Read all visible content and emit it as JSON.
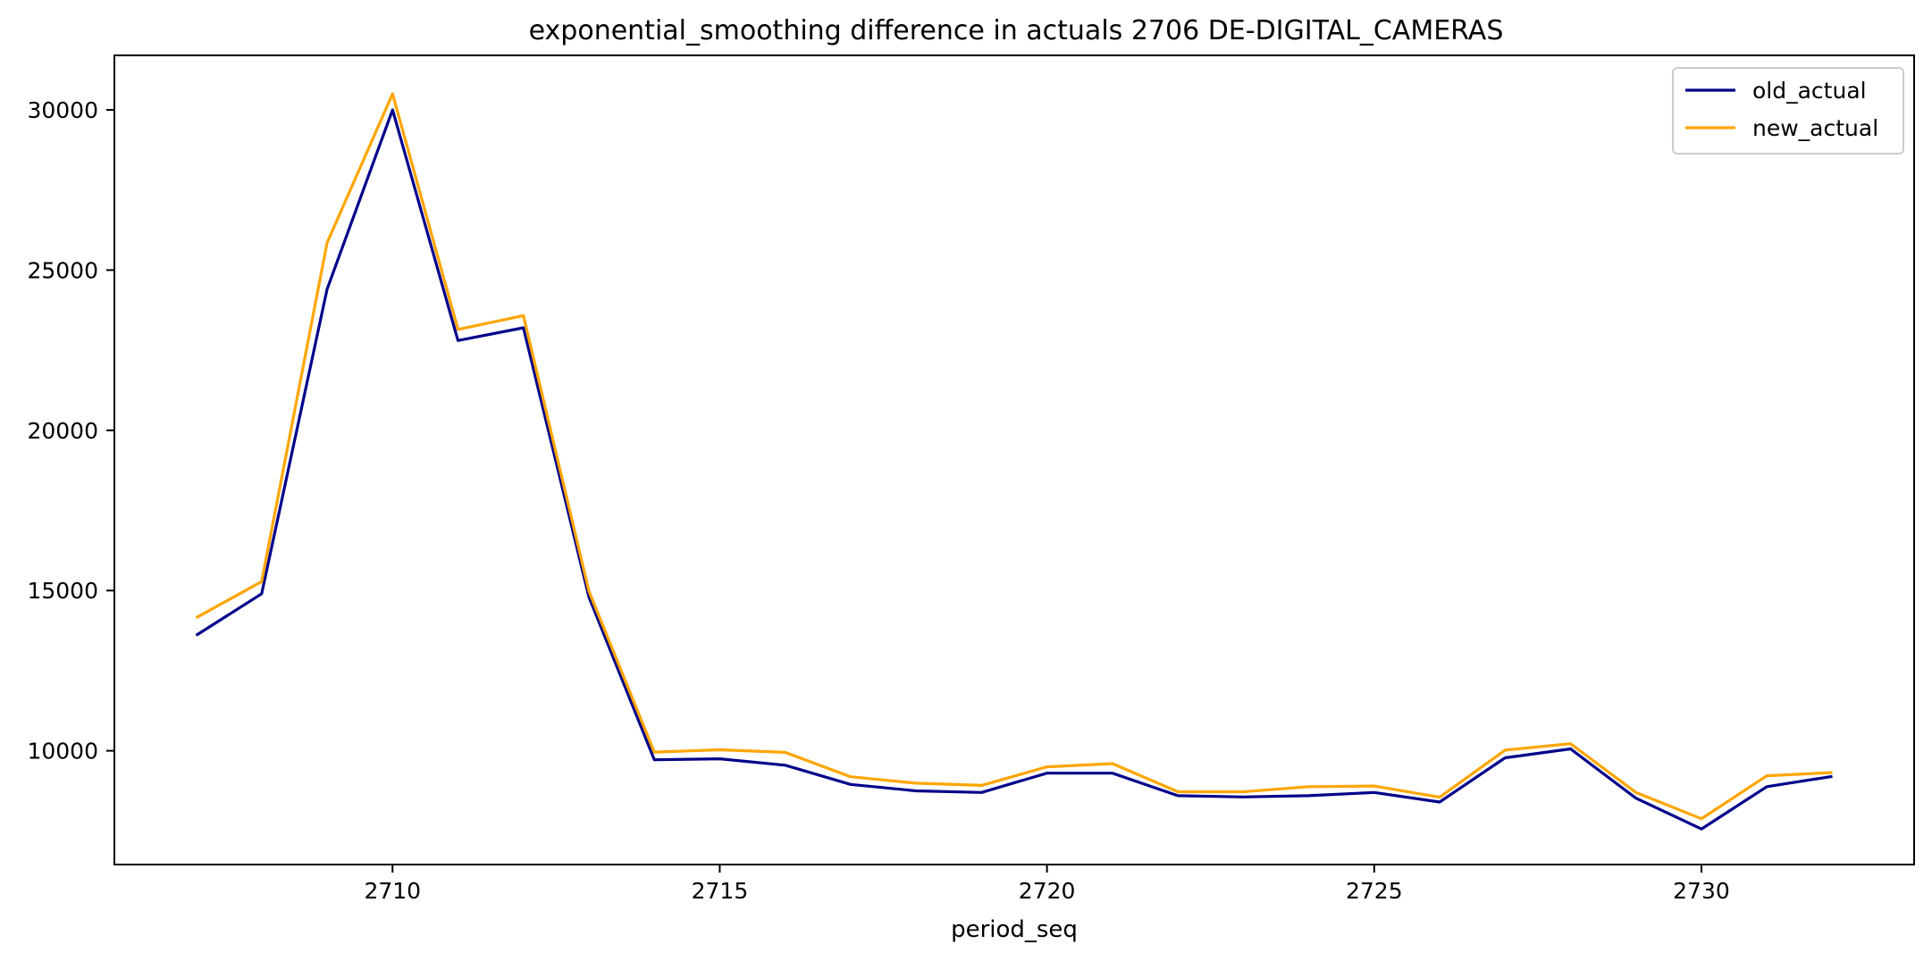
{
  "chart_data": {
    "type": "line",
    "title": "exponential_smoothing difference in actuals 2706 DE-DIGITAL_CAMERAS",
    "xlabel": "period_seq",
    "ylabel": "",
    "xlim": [
      2705.75,
      2733.25
    ],
    "ylim": [
      6450,
      31700
    ],
    "x_ticks": [
      2710,
      2715,
      2720,
      2725,
      2730
    ],
    "y_ticks": [
      10000,
      15000,
      20000,
      25000,
      30000
    ],
    "grid": false,
    "legend": {
      "placement": "top-right",
      "entries": [
        "old_actual",
        "new_actual"
      ]
    },
    "x": [
      2707,
      2708,
      2709,
      2710,
      2711,
      2712,
      2713,
      2714,
      2715,
      2716,
      2717,
      2718,
      2719,
      2720,
      2721,
      2722,
      2723,
      2724,
      2725,
      2726,
      2727,
      2728,
      2729,
      2730,
      2731,
      2732
    ],
    "series": [
      {
        "name": "old_actual",
        "color": "#00008b",
        "values": [
          13600,
          14900,
          24400,
          30000,
          22800,
          23200,
          14800,
          9720,
          9750,
          9550,
          8950,
          8750,
          8700,
          9300,
          9300,
          8600,
          8560,
          8600,
          8700,
          8400,
          9780,
          10060,
          8520,
          7560,
          8880,
          9200
        ]
      },
      {
        "name": "new_actual",
        "color": "#ffa500",
        "values": [
          14150,
          15280,
          25850,
          30500,
          23150,
          23580,
          14980,
          9960,
          10030,
          9950,
          9190,
          8990,
          8920,
          9500,
          9600,
          8720,
          8720,
          8880,
          8900,
          8550,
          10020,
          10220,
          8700,
          7880,
          9220,
          9320
        ]
      }
    ]
  }
}
